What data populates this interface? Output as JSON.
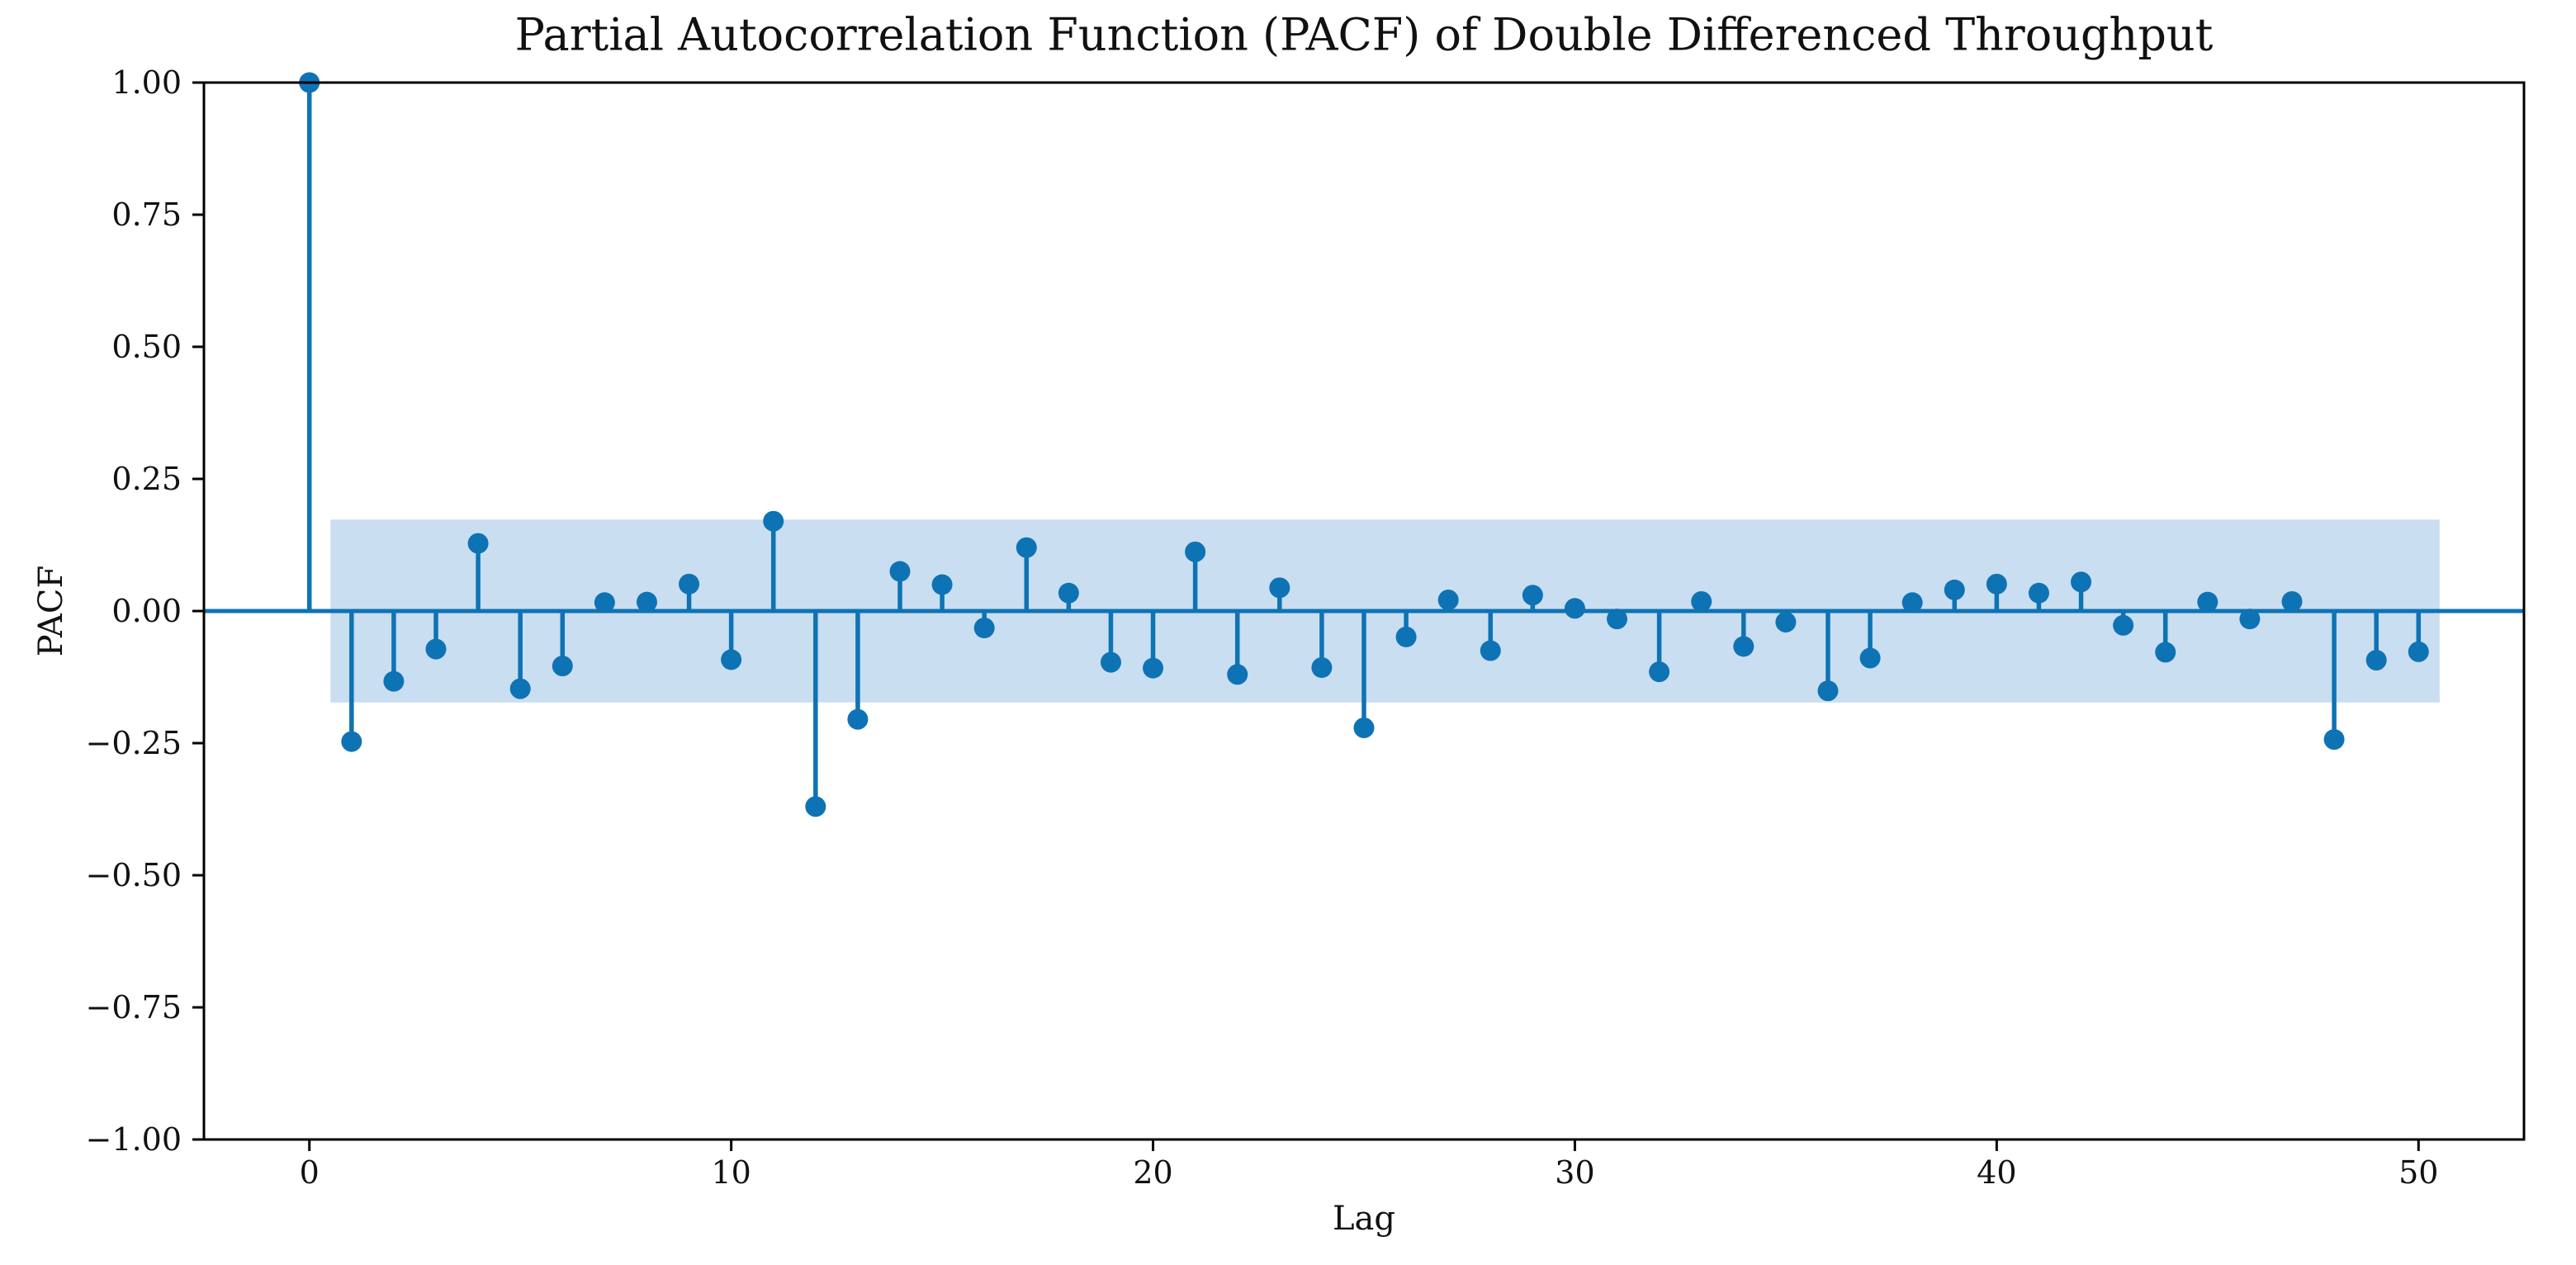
{
  "figure": {
    "background": "#ffffff"
  },
  "chart_data": {
    "type": "scatter",
    "subtype": "stem-pacf",
    "title": "Partial Autocorrelation Function (PACF) of Double Differenced Throughput",
    "xlabel": "Lag",
    "ylabel": "PACF",
    "xlim": [
      -2.5,
      52.5
    ],
    "ylim": [
      -1.0,
      1.0
    ],
    "grid": false,
    "legend": null,
    "xticks": [
      0,
      10,
      20,
      30,
      40,
      50
    ],
    "xtick_labels": [
      "0",
      "10",
      "20",
      "30",
      "40",
      "50"
    ],
    "yticks": [
      1.0,
      0.75,
      0.5,
      0.25,
      0.0,
      -0.25,
      -0.5,
      -0.75,
      -1.0
    ],
    "ytick_labels": [
      "1.00",
      "0.75",
      "0.50",
      "0.25",
      "0.00",
      "−0.25",
      "−0.50",
      "−0.75",
      "−1.00"
    ],
    "lags": [
      0,
      1,
      2,
      3,
      4,
      5,
      6,
      7,
      8,
      9,
      10,
      11,
      12,
      13,
      14,
      15,
      16,
      17,
      18,
      19,
      20,
      21,
      22,
      23,
      24,
      25,
      26,
      27,
      28,
      29,
      30,
      31,
      32,
      33,
      34,
      35,
      36,
      37,
      38,
      39,
      40,
      41,
      42,
      43,
      44,
      45,
      46,
      47,
      48,
      49,
      50
    ],
    "values": [
      1.0,
      -0.247,
      -0.133,
      -0.072,
      0.128,
      -0.147,
      -0.104,
      0.016,
      0.017,
      0.051,
      -0.092,
      0.17,
      -0.37,
      -0.205,
      0.075,
      0.05,
      -0.032,
      0.12,
      0.034,
      -0.097,
      -0.108,
      0.112,
      -0.12,
      0.044,
      -0.107,
      -0.221,
      -0.049,
      0.021,
      -0.075,
      0.03,
      0.005,
      -0.015,
      -0.115,
      0.018,
      -0.067,
      -0.021,
      -0.151,
      -0.089,
      0.016,
      0.04,
      0.051,
      0.034,
      0.055,
      -0.027,
      -0.078,
      0.017,
      -0.015,
      0.018,
      -0.243,
      -0.093,
      -0.077
    ],
    "confidence_band": {
      "low": -0.173,
      "high": 0.173,
      "x_start": 0.5,
      "x_end": 50.5
    },
    "colors": {
      "stem": "#0e73b4",
      "marker": "#0e73b4",
      "zero_line": "#0e73b4",
      "band": "#c9def0",
      "spine": "#000000",
      "text": "#111111"
    }
  }
}
